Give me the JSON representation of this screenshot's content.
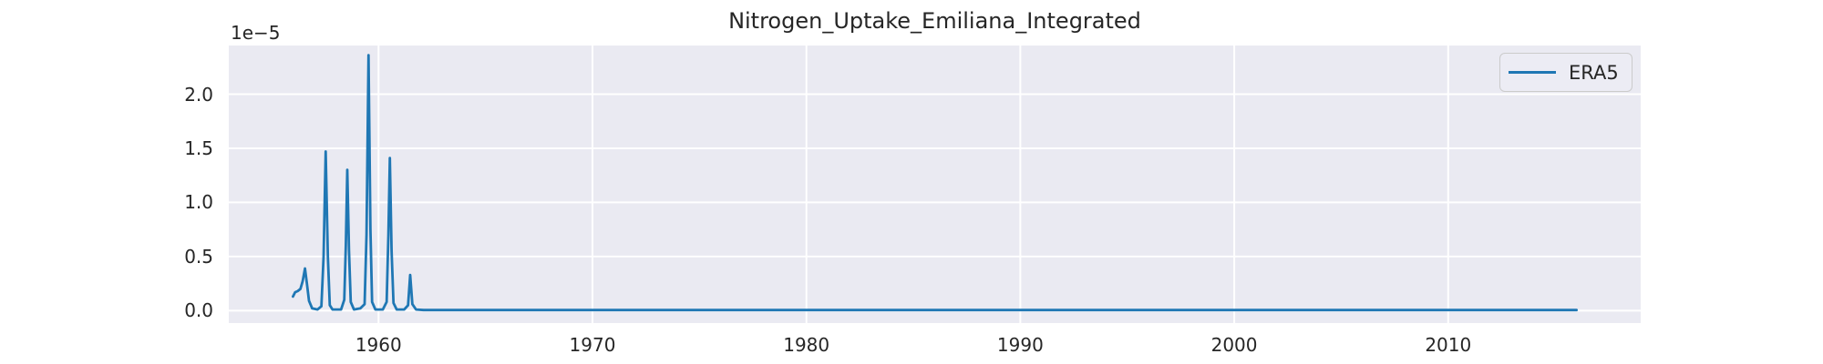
{
  "chart_data": {
    "type": "line",
    "title": "Nitrogen_Uptake_Emiliana_Integrated",
    "xlabel": "",
    "ylabel": "",
    "y_offset_label": "1e−5",
    "y_values_scale": "values are in units of 1e-5",
    "xlim": [
      1953,
      2019
    ],
    "ylim": [
      -0.115,
      2.45
    ],
    "grid": true,
    "legend_position": "upper right",
    "colors": {
      "plot_background": "#EAEAF2",
      "figure_background": "#FFFFFF",
      "gridline": "#FFFFFF",
      "text": "#262626",
      "line": "#1f77b4",
      "legend_background": "#ECECF4",
      "legend_border": "#CBCBCB"
    },
    "x_ticks": {
      "values": [
        1960,
        1970,
        1980,
        1990,
        2000,
        2010
      ],
      "labels": [
        "1960",
        "1970",
        "1980",
        "1990",
        "2000",
        "2010"
      ]
    },
    "y_ticks": {
      "values": [
        0.0,
        0.5,
        1.0,
        1.5,
        2.0
      ],
      "labels": [
        "0.0",
        "0.5",
        "1.0",
        "1.5",
        "2.0"
      ]
    },
    "series": [
      {
        "name": "ERA5",
        "color": "#1f77b4",
        "points": [
          [
            1956.0,
            0.13
          ],
          [
            1956.1,
            0.17
          ],
          [
            1956.22,
            0.18
          ],
          [
            1956.35,
            0.2
          ],
          [
            1956.45,
            0.27
          ],
          [
            1956.56,
            0.39
          ],
          [
            1956.65,
            0.25
          ],
          [
            1956.75,
            0.09
          ],
          [
            1956.9,
            0.02
          ],
          [
            1957.15,
            0.01
          ],
          [
            1957.33,
            0.04
          ],
          [
            1957.43,
            0.5
          ],
          [
            1957.53,
            1.47
          ],
          [
            1957.63,
            0.5
          ],
          [
            1957.72,
            0.05
          ],
          [
            1957.85,
            0.01
          ],
          [
            1958.25,
            0.01
          ],
          [
            1958.4,
            0.1
          ],
          [
            1958.47,
            0.6
          ],
          [
            1958.54,
            1.3
          ],
          [
            1958.62,
            0.55
          ],
          [
            1958.7,
            0.08
          ],
          [
            1958.85,
            0.01
          ],
          [
            1959.15,
            0.02
          ],
          [
            1959.35,
            0.06
          ],
          [
            1959.44,
            0.7
          ],
          [
            1959.53,
            2.36
          ],
          [
            1959.62,
            0.75
          ],
          [
            1959.7,
            0.08
          ],
          [
            1959.85,
            0.01
          ],
          [
            1960.2,
            0.01
          ],
          [
            1960.38,
            0.08
          ],
          [
            1960.46,
            0.7
          ],
          [
            1960.53,
            1.41
          ],
          [
            1960.61,
            0.55
          ],
          [
            1960.7,
            0.07
          ],
          [
            1960.85,
            0.01
          ],
          [
            1961.2,
            0.01
          ],
          [
            1961.38,
            0.05
          ],
          [
            1961.48,
            0.33
          ],
          [
            1961.58,
            0.06
          ],
          [
            1961.75,
            0.01
          ],
          [
            1962.1,
            0.005
          ],
          [
            1963.0,
            0.005
          ],
          [
            1965.0,
            0.005
          ],
          [
            1970.0,
            0.005
          ],
          [
            1975.0,
            0.005
          ],
          [
            1980.0,
            0.005
          ],
          [
            1985.0,
            0.005
          ],
          [
            1990.0,
            0.005
          ],
          [
            1995.0,
            0.005
          ],
          [
            2000.0,
            0.005
          ],
          [
            2005.0,
            0.005
          ],
          [
            2010.0,
            0.005
          ],
          [
            2016.0,
            0.005
          ]
        ]
      }
    ]
  }
}
